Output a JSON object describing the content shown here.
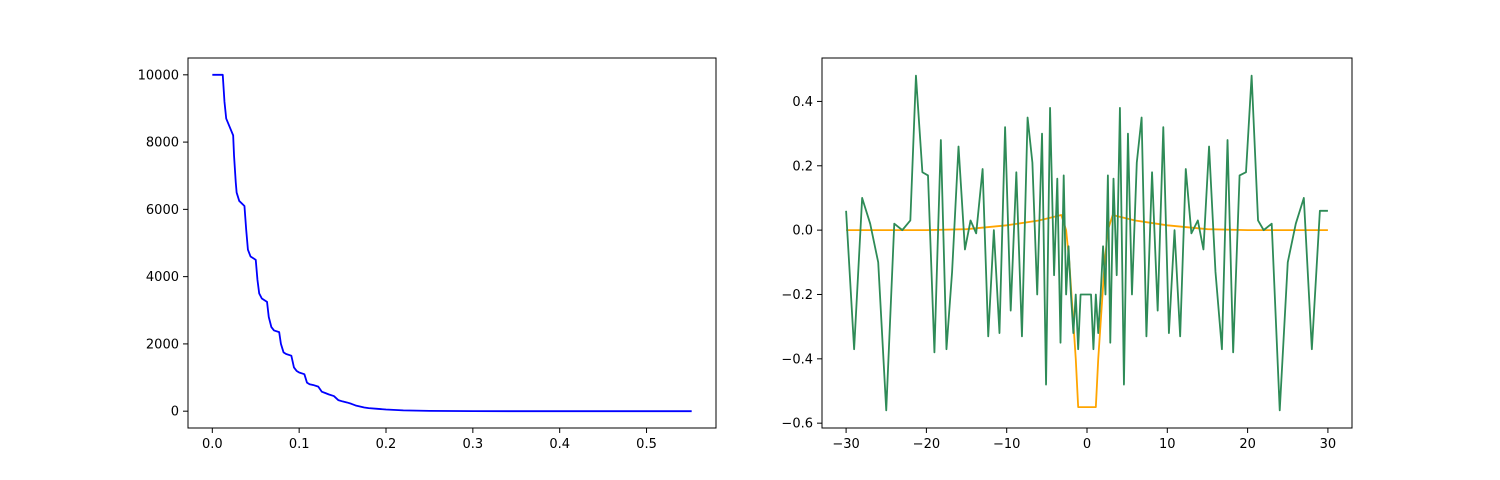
{
  "chart_data": [
    {
      "type": "line",
      "title": "",
      "xlabel": "",
      "ylabel": "",
      "xlim": [
        -0.028,
        0.58
      ],
      "ylim": [
        -500,
        10500
      ],
      "xticks": [
        0.0,
        0.1,
        0.2,
        0.3,
        0.4,
        0.5
      ],
      "xtick_labels": [
        "0.0",
        "0.1",
        "0.2",
        "0.3",
        "0.4",
        "0.5"
      ],
      "yticks": [
        0,
        2000,
        4000,
        6000,
        8000,
        10000
      ],
      "ytick_labels": [
        "0",
        "2000",
        "4000",
        "6000",
        "8000",
        "10000"
      ],
      "grid": false,
      "series": [
        {
          "color": "#0000ff",
          "x": [
            0.0,
            0.012,
            0.014,
            0.016,
            0.02,
            0.024,
            0.025,
            0.027,
            0.028,
            0.031,
            0.037,
            0.039,
            0.041,
            0.044,
            0.05,
            0.052,
            0.054,
            0.057,
            0.063,
            0.065,
            0.068,
            0.071,
            0.077,
            0.079,
            0.082,
            0.085,
            0.091,
            0.094,
            0.097,
            0.1,
            0.106,
            0.109,
            0.112,
            0.116,
            0.122,
            0.126,
            0.13,
            0.134,
            0.14,
            0.145,
            0.15,
            0.155,
            0.16,
            0.165,
            0.17,
            0.175,
            0.18,
            0.19,
            0.2,
            0.22,
            0.25,
            0.3,
            0.35,
            0.4,
            0.45,
            0.5,
            0.552
          ],
          "y": [
            10000,
            10000,
            9200,
            8700,
            8450,
            8200,
            7600,
            6800,
            6500,
            6250,
            6100,
            5400,
            4800,
            4600,
            4500,
            3900,
            3500,
            3350,
            3250,
            2800,
            2500,
            2400,
            2350,
            2000,
            1750,
            1700,
            1650,
            1300,
            1200,
            1150,
            1100,
            850,
            800,
            780,
            730,
            580,
            540,
            500,
            450,
            330,
            290,
            260,
            220,
            170,
            140,
            110,
            90,
            70,
            50,
            25,
            8,
            2,
            0,
            0,
            0,
            0,
            0
          ]
        }
      ]
    },
    {
      "type": "line",
      "title": "",
      "xlabel": "",
      "ylabel": "",
      "xlim": [
        -33.0,
        33.0
      ],
      "ylim": [
        -0.615,
        0.535
      ],
      "xticks": [
        -30,
        -20,
        -10,
        0,
        10,
        20,
        30
      ],
      "xtick_labels": [
        "−30",
        "−20",
        "−10",
        "0",
        "10",
        "20",
        "30"
      ],
      "yticks": [
        -0.6,
        -0.4,
        -0.2,
        0.0,
        0.2,
        0.4
      ],
      "ytick_labels": [
        "−0.6",
        "−0.4",
        "−0.2",
        "0.0",
        "0.2",
        "0.4"
      ],
      "grid": false,
      "series": [
        {
          "color": "#ffa500",
          "x": [
            -30,
            -25,
            -20,
            -15,
            -10,
            -6,
            -4,
            -3.2,
            -2.6,
            -2.2,
            -1.8,
            -1.4,
            -1.1,
            1.1,
            1.4,
            1.8,
            2.2,
            2.6,
            3.2,
            4,
            6,
            10,
            15,
            20,
            25,
            30
          ],
          "y": [
            0.0,
            0.0,
            0.0,
            0.003,
            0.015,
            0.03,
            0.042,
            0.047,
            0.0,
            -0.1,
            -0.25,
            -0.4,
            -0.55,
            -0.55,
            -0.4,
            -0.25,
            -0.1,
            0.0,
            0.047,
            0.042,
            0.03,
            0.015,
            0.003,
            0.0,
            0.0,
            0.0
          ]
        },
        {
          "color": "#2e8b57",
          "x": [
            -30,
            -29,
            -28,
            -27,
            -26,
            -25,
            -24,
            -23,
            -22,
            -21.3,
            -20.5,
            -19.8,
            -19,
            -18.2,
            -17.5,
            -16.8,
            -16,
            -15.2,
            -14.5,
            -13.8,
            -13,
            -12.3,
            -11.6,
            -10.9,
            -10.2,
            -9.5,
            -8.8,
            -8.1,
            -7.4,
            -6.8,
            -6.2,
            -5.6,
            -5.1,
            -4.6,
            -4.1,
            -3.7,
            -3.3,
            -2.9,
            -2.6,
            -2.3,
            -2.0,
            -1.7,
            -1.4,
            -1.1,
            -0.8,
            -0.5,
            0.5,
            0.8,
            1.1,
            1.4,
            1.7,
            2.0,
            2.3,
            2.6,
            2.9,
            3.3,
            3.7,
            4.1,
            4.6,
            5.1,
            5.6,
            6.2,
            6.8,
            7.4,
            8.1,
            8.8,
            9.5,
            10.2,
            10.9,
            11.6,
            12.3,
            13,
            13.8,
            14.5,
            15.2,
            16,
            16.8,
            17.5,
            18.2,
            19,
            19.8,
            20.5,
            21.3,
            22,
            23,
            24,
            25,
            26,
            27,
            28,
            29,
            30
          ],
          "y": [
            0.06,
            -0.37,
            0.1,
            0.02,
            -0.1,
            -0.56,
            0.02,
            0.0,
            0.03,
            0.48,
            0.18,
            0.17,
            -0.38,
            0.28,
            -0.37,
            -0.13,
            0.26,
            -0.06,
            0.03,
            -0.01,
            0.19,
            -0.33,
            0.0,
            -0.32,
            0.32,
            -0.25,
            0.18,
            -0.33,
            0.35,
            0.21,
            -0.2,
            0.3,
            -0.48,
            0.38,
            -0.14,
            0.16,
            -0.35,
            0.17,
            -0.2,
            -0.05,
            -0.2,
            -0.32,
            -0.2,
            -0.37,
            -0.2,
            -0.2,
            -0.2,
            -0.37,
            -0.2,
            -0.32,
            -0.2,
            -0.05,
            -0.2,
            0.17,
            -0.35,
            0.16,
            -0.14,
            0.38,
            -0.48,
            0.3,
            -0.2,
            0.21,
            0.35,
            -0.33,
            0.18,
            -0.25,
            0.32,
            -0.32,
            0.0,
            -0.33,
            0.19,
            -0.01,
            0.03,
            -0.06,
            0.26,
            -0.13,
            -0.37,
            0.28,
            -0.38,
            0.17,
            0.18,
            0.48,
            0.03,
            0.0,
            0.02,
            -0.56,
            -0.1,
            0.02,
            0.1,
            -0.37,
            0.06,
            0.06
          ]
        }
      ]
    }
  ]
}
